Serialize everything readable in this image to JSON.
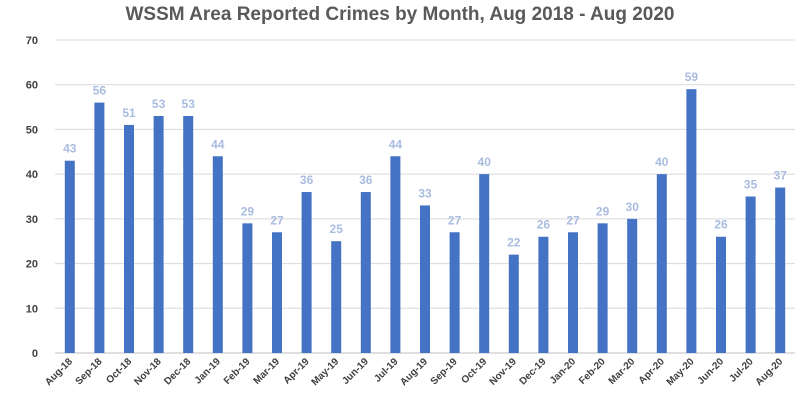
{
  "chart_data": {
    "type": "bar",
    "title": "WSSM Area Reported Crimes by Month, Aug 2018 - Aug 2020",
    "xlabel": "",
    "ylabel": "",
    "ylim": [
      0,
      70
    ],
    "yticks": [
      0,
      10,
      20,
      30,
      40,
      50,
      60,
      70
    ],
    "grid": true,
    "legend": "none",
    "categories": [
      "Aug-18",
      "Sep-18",
      "Oct-18",
      "Nov-18",
      "Dec-18",
      "Jan-19",
      "Feb-19",
      "Mar-19",
      "Apr-19",
      "May-19",
      "Jun-19",
      "Jul-19",
      "Aug-19",
      "Sep-19",
      "Oct-19",
      "Nov-19",
      "Dec-19",
      "Jan-20",
      "Feb-20",
      "Mar-20",
      "Apr-20",
      "May-20",
      "Jun-20",
      "Jul-20",
      "Aug-20"
    ],
    "values": [
      43,
      56,
      51,
      53,
      53,
      44,
      29,
      27,
      36,
      25,
      36,
      44,
      33,
      27,
      40,
      22,
      26,
      27,
      29,
      30,
      40,
      59,
      26,
      35,
      37
    ],
    "colors": {
      "bar": "#4472C4",
      "data_label": "#A9BCE0",
      "grid": "#D9D9D9",
      "title": "#595959"
    }
  }
}
